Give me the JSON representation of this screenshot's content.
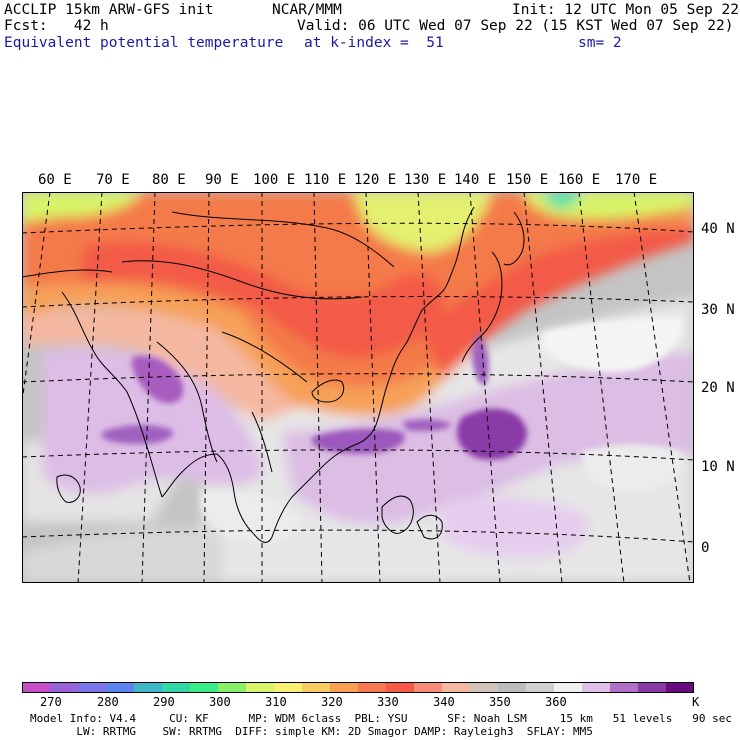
{
  "header": {
    "title": "ACCLIP 15km ARW-GFS init",
    "forecast": "Fcst:   42 h",
    "field": "Equivalent potential temperature",
    "center": "NCAR/MMM",
    "init": "Init: 12 UTC Mon 05 Sep 22",
    "valid": "Valid: 06 UTC Wed 07 Sep 22 (15 KST Wed 07 Sep 22)",
    "level": "at k-index =  51",
    "smoothing": "sm= 2"
  },
  "map": {
    "lon_labels": [
      "60 E",
      "70 E",
      "80 E",
      "90 E",
      "100 E",
      "110 E",
      "120 E",
      "130 E",
      "140 E",
      "150 E",
      "160 E",
      "170 E"
    ],
    "lat_labels": [
      "40 N",
      "30 N",
      "20 N",
      "10 N",
      "0"
    ],
    "colors": {
      "border": "#000000",
      "gridline": "#000000"
    }
  },
  "colorbar": {
    "labels": [
      "270",
      "280",
      "290",
      "300",
      "310",
      "320",
      "330",
      "340",
      "350",
      "360"
    ],
    "unit": "K",
    "colors": [
      "#c64fc8",
      "#9a62d8",
      "#7b75ea",
      "#5c84f0",
      "#3cb8c8",
      "#30d8a8",
      "#38ec88",
      "#88f068",
      "#d8f468",
      "#f8f070",
      "#f8cc60",
      "#f8a050",
      "#f87850",
      "#f85a48",
      "#f88c78",
      "#f4b8a0",
      "#d2c4b8",
      "#bcbcbc",
      "#d0d0d0",
      "#f0f0f0",
      "#e0c0e8",
      "#b070c8",
      "#8a3aa8",
      "#6a0a80"
    ]
  },
  "footer": {
    "line1": "Model Info: V4.4     CU: KF      MP: WDM 6class  PBL: YSU      SF: Noah LSM     15 km   51 levels   90 sec",
    "line2": "       LW: RRTMG    SW: RRTMG  DIFF: simple KM: 2D Smagor DAMP: Rayleigh3  SFLAY: MM5"
  }
}
